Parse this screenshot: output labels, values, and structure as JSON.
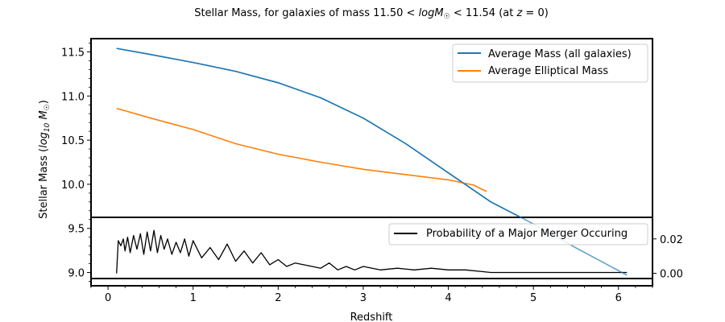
{
  "chart_data": {
    "type": "line",
    "title": "Stellar Mass, for galaxies of mass 11.50 < logM☉ < 11.54 (at z = 0)",
    "title_parts": {
      "prefix": "Stellar Mass, for galaxies of mass 11.50 < ",
      "log": "log",
      "M": "M",
      "sub": "☉",
      "middle": " < 11.54 (at ",
      "z": "z",
      "suffix": " = 0)"
    },
    "xlabel": "Redshift",
    "ylabel": "Stellar Mass (log10 M☉)",
    "ylabel_parts": {
      "prefix": "Stellar Mass (",
      "log": "log",
      "sub10": "10",
      "M": "M",
      "sub": "☉",
      "suffix": ")"
    },
    "xlim": [
      -0.2,
      6.4
    ],
    "ylim": [
      8.85,
      11.65
    ],
    "secondary_ylim": [
      -0.003,
      0.0325
    ],
    "x_ticks": [
      0,
      1,
      2,
      3,
      4,
      5,
      6
    ],
    "x_tick_labels": [
      "0",
      "1",
      "2",
      "3",
      "4",
      "5",
      "6"
    ],
    "y_ticks": [
      9.0,
      9.5,
      10.0,
      10.5,
      11.0,
      11.5
    ],
    "y_tick_labels": [
      "9.0",
      "9.5",
      "10.0",
      "10.5",
      "11.0",
      "11.5"
    ],
    "secondary_y_ticks": [
      0.0,
      0.02
    ],
    "secondary_y_tick_labels": [
      "0.00",
      "0.02"
    ],
    "legend_main": [
      "Average Mass (all galaxies)",
      "Average Elliptical Mass"
    ],
    "legend_inset": [
      "Probability of a Major Merger Occuring"
    ],
    "series": [
      {
        "name": "Average Mass (all galaxies)",
        "color": "#1f77b4",
        "x": [
          0.1,
          0.5,
          1.0,
          1.5,
          2.0,
          2.5,
          3.0,
          3.5,
          4.0,
          4.5,
          5.0,
          5.5,
          6.1
        ],
        "y": [
          11.54,
          11.47,
          11.38,
          11.28,
          11.15,
          10.98,
          10.75,
          10.46,
          10.13,
          9.8,
          9.55,
          9.28,
          8.97
        ]
      },
      {
        "name": "Average Elliptical Mass",
        "color": "#ff7f0e",
        "x": [
          0.1,
          0.5,
          1.0,
          1.5,
          2.0,
          2.5,
          3.0,
          3.5,
          4.0,
          4.3,
          4.4,
          4.45
        ],
        "y": [
          10.86,
          10.75,
          10.62,
          10.46,
          10.34,
          10.25,
          10.17,
          10.11,
          10.05,
          9.99,
          9.94,
          9.92
        ]
      },
      {
        "name": "Probability of a Major Merger Occuring",
        "color": "#000000",
        "axis": "secondary",
        "x": [
          0.1,
          0.12,
          0.15,
          0.18,
          0.2,
          0.23,
          0.26,
          0.3,
          0.34,
          0.38,
          0.42,
          0.46,
          0.5,
          0.54,
          0.58,
          0.62,
          0.66,
          0.7,
          0.75,
          0.8,
          0.85,
          0.9,
          0.95,
          1.0,
          1.1,
          1.2,
          1.3,
          1.4,
          1.5,
          1.6,
          1.7,
          1.8,
          1.9,
          2.0,
          2.1,
          2.2,
          2.3,
          2.4,
          2.5,
          2.6,
          2.7,
          2.8,
          2.9,
          3.0,
          3.2,
          3.4,
          3.6,
          3.8,
          4.0,
          4.2,
          4.4,
          4.5,
          5.0,
          5.5,
          6.1
        ],
        "y": [
          0.0,
          0.019,
          0.016,
          0.02,
          0.013,
          0.021,
          0.012,
          0.022,
          0.014,
          0.023,
          0.011,
          0.024,
          0.013,
          0.025,
          0.012,
          0.022,
          0.014,
          0.02,
          0.011,
          0.018,
          0.012,
          0.02,
          0.01,
          0.019,
          0.009,
          0.015,
          0.008,
          0.017,
          0.007,
          0.013,
          0.006,
          0.012,
          0.005,
          0.008,
          0.004,
          0.006,
          0.005,
          0.004,
          0.003,
          0.006,
          0.002,
          0.004,
          0.002,
          0.004,
          0.002,
          0.003,
          0.002,
          0.003,
          0.002,
          0.002,
          0.001,
          0.0005,
          0.0005,
          0.0005,
          0.0005
        ]
      }
    ]
  }
}
